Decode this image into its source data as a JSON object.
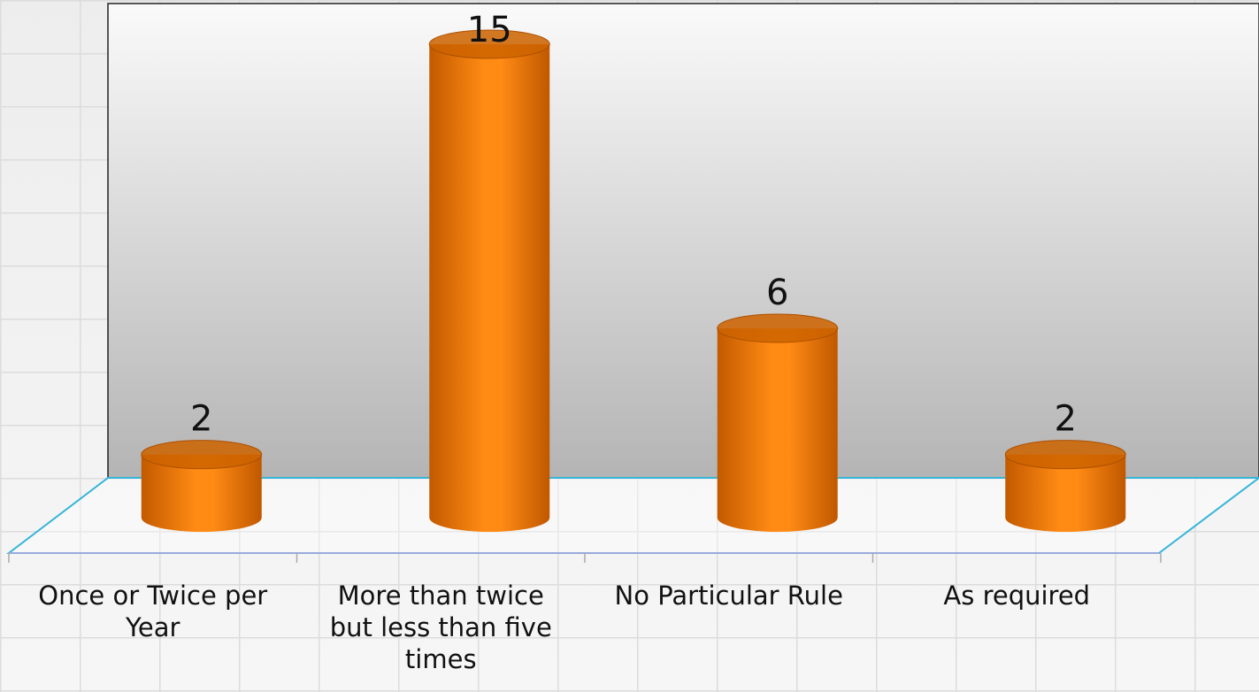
{
  "chart_data": {
    "type": "bar",
    "categories": [
      "Once or Twice per Year",
      "More than twice but less than five times",
      "No Particular Rule",
      "As required"
    ],
    "values": [
      2,
      15,
      6,
      2
    ],
    "color": "#ff8000"
  }
}
